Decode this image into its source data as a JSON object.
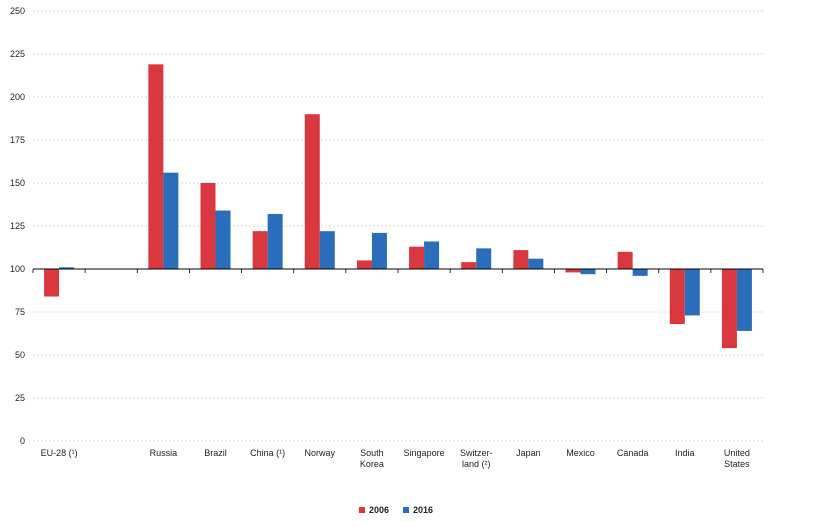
{
  "chart_data": {
    "type": "bar",
    "title": "",
    "xlabel": "",
    "ylabel": "",
    "ylim": [
      0,
      250
    ],
    "baseline": 100,
    "yticks": [
      0,
      25,
      50,
      75,
      100,
      125,
      150,
      175,
      200,
      225,
      250
    ],
    "grid": true,
    "legend_position": "bottom-center",
    "categories": [
      [
        "EU-28 (¹)"
      ],
      [
        ""
      ],
      [
        "Russia"
      ],
      [
        "Brazil"
      ],
      [
        "China (¹)"
      ],
      [
        "Norway"
      ],
      [
        "South",
        "Korea"
      ],
      [
        "Singapore"
      ],
      [
        "Switzer-",
        "land (²)"
      ],
      [
        "Japan"
      ],
      [
        "Mexico"
      ],
      [
        "Canada"
      ],
      [
        "India"
      ],
      [
        "United",
        "States"
      ]
    ],
    "series": [
      {
        "name": "2006",
        "color": "#d9383f",
        "values": [
          84,
          null,
          219,
          150,
          122,
          190,
          105,
          113,
          104,
          111,
          98,
          110,
          68,
          54
        ]
      },
      {
        "name": "2016",
        "color": "#2a6ebb",
        "values": [
          101,
          null,
          156,
          134,
          132,
          122,
          121,
          116,
          112,
          106,
          97,
          96,
          73,
          64
        ]
      }
    ]
  }
}
